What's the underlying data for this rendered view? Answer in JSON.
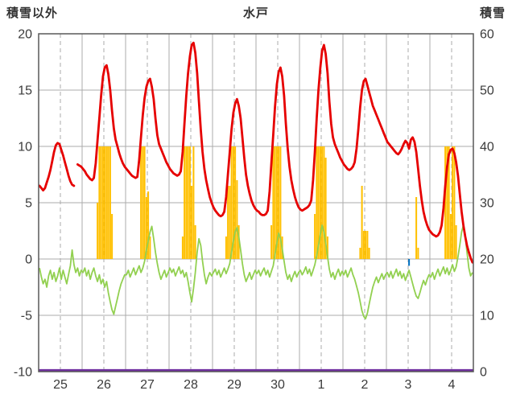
{
  "chart_data": {
    "type": "line",
    "title": "水戸",
    "left_axis": {
      "label": "積雪以外",
      "min": -10,
      "max": 20,
      "ticks": [
        20,
        15,
        10,
        5,
        0,
        -5,
        -10
      ]
    },
    "right_axis": {
      "label": "積雪",
      "min": 0,
      "max": 60,
      "ticks": [
        60,
        50,
        40,
        30,
        20,
        10,
        0
      ]
    },
    "x_axis": {
      "day_labels": [
        "25",
        "26",
        "27",
        "28",
        "29",
        "30",
        "1",
        "2",
        "3",
        "4"
      ],
      "hours_per_day": 24,
      "solid_gridline": "day-boundary",
      "dashed_gridline": "noon"
    },
    "colors": {
      "red_line": "#E60000",
      "green_line": "#92D050",
      "orange_bars": "#FFC000",
      "purple_line": "#7030A0",
      "blue_mark": "#0070C0",
      "grid": "#ABABAB",
      "border": "#595959",
      "text": "#3B3B3B"
    },
    "series": {
      "temperature_red": {
        "type": "line",
        "axis": "left",
        "color_key": "red_line",
        "values": [
          6.5,
          6.3,
          6.1,
          6.3,
          6.8,
          7.3,
          7.9,
          8.7,
          9.5,
          10.1,
          10.3,
          10.2,
          9.7,
          9.2,
          8.6,
          8.0,
          7.4,
          6.9,
          6.6,
          6.5,
          null,
          8.4,
          8.3,
          8.2,
          8.0,
          7.8,
          7.5,
          7.3,
          7.1,
          7.0,
          7.2,
          8.5,
          10.5,
          12.5,
          14.5,
          16.2,
          17.0,
          17.2,
          16.4,
          15.0,
          13.2,
          11.6,
          10.6,
          10.0,
          9.4,
          8.9,
          8.5,
          8.2,
          8.0,
          7.8,
          7.6,
          7.4,
          7.3,
          7.2,
          7.3,
          8.8,
          10.8,
          12.8,
          14.3,
          15.3,
          15.8,
          16.0,
          15.3,
          14.2,
          12.5,
          11.0,
          10.2,
          9.8,
          9.4,
          9.0,
          8.6,
          8.3,
          8.0,
          7.8,
          7.6,
          7.5,
          7.4,
          7.5,
          7.8,
          9.5,
          12.0,
          14.5,
          16.5,
          18.0,
          19.0,
          19.2,
          18.3,
          16.5,
          14.0,
          11.5,
          9.5,
          8.0,
          7.0,
          6.2,
          5.5,
          5.0,
          4.6,
          4.3,
          4.1,
          3.9,
          3.8,
          3.9,
          4.2,
          5.5,
          7.5,
          9.5,
          11.5,
          13.0,
          13.8,
          14.2,
          13.6,
          12.5,
          10.8,
          9.0,
          7.5,
          6.5,
          5.8,
          5.2,
          4.8,
          4.5,
          4.3,
          4.2,
          4.0,
          3.9,
          3.9,
          4.0,
          4.3,
          6.0,
          8.5,
          11.0,
          13.5,
          15.5,
          16.6,
          17.0,
          16.2,
          14.5,
          12.0,
          9.8,
          8.2,
          7.0,
          6.2,
          5.5,
          5.0,
          4.6,
          4.4,
          4.3,
          4.4,
          4.5,
          4.6,
          4.8,
          5.2,
          7.0,
          9.5,
          12.5,
          15.0,
          17.0,
          18.5,
          19.0,
          18.2,
          16.5,
          14.0,
          12.0,
          10.8,
          10.2,
          9.8,
          9.4,
          9.0,
          8.7,
          8.4,
          8.2,
          8.0,
          7.9,
          8.0,
          8.2,
          8.6,
          9.8,
          11.5,
          13.5,
          15.0,
          15.8,
          16.0,
          15.4,
          14.8,
          14.2,
          13.6,
          13.2,
          12.8,
          12.4,
          12.0,
          11.6,
          11.2,
          10.8,
          10.4,
          10.2,
          10.0,
          9.8,
          9.6,
          9.4,
          9.3,
          9.5,
          9.8,
          10.2,
          10.5,
          10.3,
          9.8,
          10.6,
          10.8,
          10.4,
          9.5,
          8.0,
          6.5,
          5.2,
          4.2,
          3.5,
          3.0,
          2.6,
          2.4,
          2.2,
          2.1,
          2.0,
          2.1,
          2.4,
          3.0,
          4.5,
          6.5,
          8.2,
          9.3,
          9.7,
          9.8,
          9.4,
          8.6,
          7.4,
          5.8,
          4.2,
          3.0,
          2.0,
          1.2,
          0.6,
          0.1,
          -0.3
        ]
      },
      "green_line": {
        "type": "line",
        "axis": "left",
        "color_key": "green_line",
        "values": [
          -0.8,
          -1.6,
          -2.2,
          -1.8,
          -2.5,
          -1.5,
          -1.0,
          -1.8,
          -1.2,
          -2.0,
          -1.5,
          -0.8,
          -1.8,
          -1.0,
          -1.6,
          -2.2,
          -1.4,
          -0.6,
          0.8,
          -0.5,
          -1.2,
          -0.8,
          -1.5,
          -1.0,
          -1.2,
          -0.8,
          -1.5,
          -1.0,
          -1.8,
          -1.2,
          -0.8,
          -1.5,
          -2.0,
          -1.4,
          -2.2,
          -1.8,
          -2.5,
          -2.0,
          -3.0,
          -3.8,
          -4.5,
          -4.9,
          -4.2,
          -3.5,
          -2.8,
          -2.2,
          -1.8,
          -1.4,
          -1.4,
          -1.0,
          -1.6,
          -1.2,
          -0.8,
          -1.4,
          -1.0,
          -0.6,
          -1.2,
          -0.8,
          -0.2,
          0.8,
          1.6,
          2.4,
          2.9,
          1.8,
          0.6,
          -0.4,
          -1.2,
          -1.8,
          -1.4,
          -1.0,
          -1.6,
          -1.2,
          -0.8,
          -1.2,
          -0.9,
          -1.5,
          -1.1,
          -0.7,
          -1.3,
          -1.0,
          -1.6,
          -1.2,
          -2.0,
          -3.0,
          -3.8,
          -2.6,
          -1.2,
          0.6,
          1.8,
          1.2,
          -0.2,
          -1.4,
          -2.2,
          -1.6,
          -1.2,
          -1.5,
          -1.2,
          -0.9,
          -1.4,
          -1.0,
          -1.6,
          -1.2,
          -0.8,
          -1.3,
          -0.9,
          -0.4,
          0.6,
          1.6,
          2.4,
          2.8,
          2.0,
          0.8,
          -0.4,
          -1.4,
          -2.0,
          -1.6,
          -1.2,
          -1.8,
          -1.4,
          -1.0,
          -1.3,
          -1.0,
          -1.5,
          -1.1,
          -0.8,
          -1.4,
          -1.0,
          -1.6,
          -1.1,
          -0.6,
          0.4,
          1.4,
          2.3,
          1.8,
          0.9,
          -0.2,
          -1.2,
          -1.8,
          -1.4,
          -2.0,
          -1.5,
          -1.1,
          -1.6,
          -1.2,
          -1.0,
          -1.4,
          -1.1,
          -0.7,
          -1.3,
          -0.9,
          -1.5,
          -1.0,
          -0.5,
          0.3,
          1.2,
          2.2,
          3.0,
          2.4,
          1.4,
          0.2,
          -0.9,
          -1.6,
          -1.2,
          -1.8,
          -1.3,
          -0.9,
          -1.5,
          -1.1,
          -1.4,
          -1.0,
          -1.6,
          -1.2,
          -0.8,
          -1.4,
          -1.8,
          -2.4,
          -3.0,
          -3.8,
          -4.6,
          -5.1,
          -5.3,
          -4.8,
          -4.0,
          -3.2,
          -2.5,
          -2.0,
          -1.6,
          -2.1,
          -1.7,
          -1.3,
          -1.8,
          -1.4,
          -1.2,
          -1.6,
          -1.1,
          -1.7,
          -1.3,
          -0.9,
          -1.5,
          -1.1,
          -1.7,
          -1.3,
          -1.9,
          -1.4,
          -1.0,
          -1.6,
          -2.2,
          -2.8,
          -3.3,
          -3.5,
          -3.0,
          -2.4,
          -1.9,
          -2.3,
          -1.8,
          -1.4,
          -1.6,
          -1.2,
          -1.8,
          -1.3,
          -0.9,
          -1.5,
          -1.1,
          -0.7,
          -1.3,
          -0.8,
          -1.4,
          -1.0,
          -0.5,
          -1.1,
          -0.7,
          0.2,
          1.2,
          2.4,
          3.0,
          2.0,
          0.6,
          -0.8,
          -1.5,
          -1.2
        ]
      },
      "sunshine_bars": {
        "type": "bar",
        "axis": "left",
        "color_key": "orange_bars",
        "baseline": 0,
        "cap": 10,
        "bars": [
          [
            32,
            5
          ],
          [
            33,
            10
          ],
          [
            34,
            10
          ],
          [
            35,
            10
          ],
          [
            36,
            10
          ],
          [
            37,
            10
          ],
          [
            38,
            10
          ],
          [
            39,
            10
          ],
          [
            40,
            4
          ],
          [
            56,
            10
          ],
          [
            57,
            10
          ],
          [
            58,
            10
          ],
          [
            59,
            5.5
          ],
          [
            60,
            6
          ],
          [
            61,
            2
          ],
          [
            79,
            2
          ],
          [
            80,
            10
          ],
          [
            81,
            10
          ],
          [
            82,
            10
          ],
          [
            83,
            10
          ],
          [
            84,
            6.5
          ],
          [
            85,
            10
          ],
          [
            86,
            3
          ],
          [
            103,
            2
          ],
          [
            104,
            6.5
          ],
          [
            105,
            6.5
          ],
          [
            106,
            10
          ],
          [
            107,
            10
          ],
          [
            108,
            10
          ],
          [
            109,
            7
          ],
          [
            110,
            3
          ],
          [
            128,
            3
          ],
          [
            129,
            10
          ],
          [
            130,
            10
          ],
          [
            131,
            10
          ],
          [
            132,
            10
          ],
          [
            133,
            10
          ],
          [
            134,
            2
          ],
          [
            152,
            4
          ],
          [
            153,
            10
          ],
          [
            154,
            10
          ],
          [
            155,
            10
          ],
          [
            156,
            10
          ],
          [
            157,
            10
          ],
          [
            158,
            9
          ],
          [
            159,
            2
          ],
          [
            177,
            1
          ],
          [
            178,
            6.5
          ],
          [
            179,
            2.5
          ],
          [
            180,
            2.5
          ],
          [
            181,
            2.5
          ],
          [
            182,
            1
          ],
          [
            208,
            5.5
          ],
          [
            209,
            1
          ],
          [
            224,
            10
          ],
          [
            225,
            10
          ],
          [
            226,
            10
          ],
          [
            227,
            4
          ],
          [
            228,
            10
          ],
          [
            229,
            10
          ],
          [
            230,
            3
          ]
        ]
      },
      "blue_mark": {
        "type": "bar",
        "axis": "left",
        "color_key": "blue_mark",
        "baseline": 0,
        "bars": [
          [
            204,
            -0.6
          ]
        ]
      },
      "snow_depth_purple": {
        "type": "constant-line",
        "axis": "right",
        "color_key": "purple_line",
        "constant": 0
      }
    }
  }
}
